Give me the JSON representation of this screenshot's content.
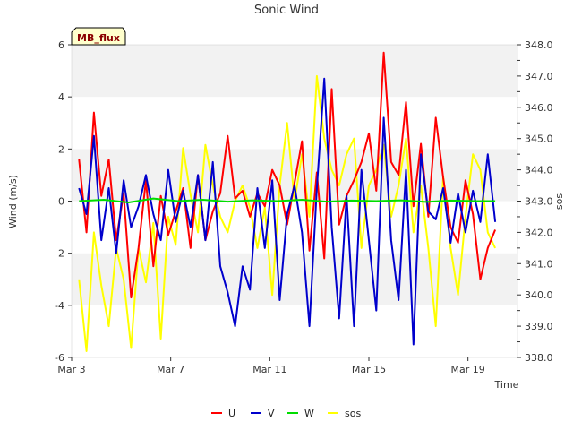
{
  "chart_data": {
    "type": "line",
    "title": "Sonic Wind",
    "badge": "MB_flux",
    "xlabel": "Time",
    "ylabel_left": "Wind (m/s)",
    "ylabel_right": "sos",
    "xlim": [
      3,
      21
    ],
    "ylim_left": [
      -6,
      6
    ],
    "ylim_right": [
      338.0,
      348.0
    ],
    "x_tick_labels": [
      "Mar 3",
      "Mar 7",
      "Mar 11",
      "Mar 15",
      "Mar 19"
    ],
    "x_tick_values": [
      3,
      7,
      11,
      15,
      19
    ],
    "y_left_ticks": [
      -6,
      -4,
      -2,
      0,
      2,
      4,
      6
    ],
    "y_right_ticks": [
      "338.0",
      "339.0",
      "340.0",
      "341.0",
      "342.0",
      "343.0",
      "344.0",
      "345.0",
      "346.0",
      "347.0",
      "348.0"
    ],
    "grid_bands": true,
    "legend_position": "bottom",
    "series": [
      {
        "name": "U",
        "color": "#ff0000",
        "axis": "left",
        "x": [
          3.3,
          3.6,
          3.9,
          4.2,
          4.5,
          4.8,
          5.1,
          5.4,
          5.7,
          6.0,
          6.3,
          6.6,
          6.9,
          7.2,
          7.5,
          7.8,
          8.1,
          8.4,
          8.7,
          9.0,
          9.3,
          9.6,
          9.9,
          10.2,
          10.5,
          10.8,
          11.1,
          11.4,
          11.7,
          12.0,
          12.3,
          12.6,
          12.9,
          13.2,
          13.5,
          13.8,
          14.1,
          14.4,
          14.7,
          15.0,
          15.3,
          15.6,
          15.9,
          16.2,
          16.5,
          16.8,
          17.1,
          17.4,
          17.7,
          18.0,
          18.3,
          18.6,
          18.9,
          19.2,
          19.5,
          19.8,
          20.1
        ],
        "values": [
          1.6,
          -1.2,
          3.4,
          0.2,
          1.6,
          -1.5,
          0.3,
          -3.7,
          -1.8,
          0.8,
          -2.5,
          0.2,
          -1.3,
          -0.4,
          0.5,
          -1.8,
          1.0,
          -1.5,
          -0.4,
          0.3,
          2.5,
          0.1,
          0.4,
          -0.6,
          0.3,
          -0.2,
          1.2,
          0.6,
          -0.9,
          0.7,
          2.3,
          -1.9,
          1.1,
          -2.2,
          4.3,
          -0.9,
          0.2,
          0.8,
          1.5,
          2.6,
          0.4,
          5.7,
          1.5,
          1.0,
          3.8,
          -0.2,
          2.2,
          -0.6,
          3.2,
          0.9,
          -1.0,
          -1.6,
          0.8,
          -0.5,
          -3.0,
          -1.8,
          -1.1
        ]
      },
      {
        "name": "V",
        "color": "#0000cc",
        "axis": "left",
        "x": [
          3.3,
          3.6,
          3.9,
          4.2,
          4.5,
          4.8,
          5.1,
          5.4,
          5.7,
          6.0,
          6.3,
          6.6,
          6.9,
          7.2,
          7.5,
          7.8,
          8.1,
          8.4,
          8.7,
          9.0,
          9.3,
          9.6,
          9.9,
          10.2,
          10.5,
          10.8,
          11.1,
          11.4,
          11.7,
          12.0,
          12.3,
          12.6,
          12.9,
          13.2,
          13.5,
          13.8,
          14.1,
          14.4,
          14.7,
          15.0,
          15.3,
          15.6,
          15.9,
          16.2,
          16.5,
          16.8,
          17.1,
          17.4,
          17.7,
          18.0,
          18.3,
          18.6,
          18.9,
          19.2,
          19.5,
          19.8,
          20.1
        ],
        "values": [
          0.5,
          -0.5,
          2.5,
          -1.5,
          0.5,
          -2.0,
          0.8,
          -1.0,
          -0.2,
          1.0,
          -0.5,
          -1.5,
          1.2,
          -0.8,
          0.4,
          -1.0,
          1.0,
          -1.5,
          1.5,
          -2.5,
          -3.5,
          -4.8,
          -2.5,
          -3.4,
          0.5,
          -1.8,
          0.8,
          -3.8,
          -0.5,
          0.6,
          -1.2,
          -4.8,
          0.5,
          4.7,
          -1.0,
          -4.5,
          0.2,
          -4.8,
          1.2,
          -1.5,
          -4.2,
          3.2,
          -1.5,
          -3.8,
          1.2,
          -5.5,
          1.8,
          -0.4,
          -0.7,
          0.5,
          -1.6,
          0.3,
          -1.2,
          0.4,
          -0.8,
          1.8,
          -0.8
        ]
      },
      {
        "name": "W",
        "color": "#00dd00",
        "axis": "left",
        "x": [
          3.3,
          4.3,
          5.3,
          6.3,
          7.3,
          8.3,
          9.3,
          10.3,
          11.3,
          12.3,
          13.3,
          14.3,
          15.3,
          16.3,
          17.3,
          18.3,
          19.3,
          20.1
        ],
        "values": [
          0.0,
          0.05,
          -0.05,
          0.1,
          0.0,
          0.05,
          -0.02,
          0.03,
          0.0,
          0.05,
          -0.02,
          0.02,
          0.0,
          0.03,
          -0.03,
          0.02,
          0.0,
          0.0
        ]
      },
      {
        "name": "sos",
        "color": "#ffff00",
        "axis": "right",
        "x": [
          3.3,
          3.6,
          3.9,
          4.2,
          4.5,
          4.8,
          5.1,
          5.4,
          5.7,
          6.0,
          6.3,
          6.6,
          6.9,
          7.2,
          7.5,
          7.8,
          8.1,
          8.4,
          8.7,
          9.0,
          9.3,
          9.6,
          9.9,
          10.2,
          10.5,
          10.8,
          11.1,
          11.4,
          11.7,
          12.0,
          12.3,
          12.6,
          12.9,
          13.2,
          13.5,
          13.8,
          14.1,
          14.4,
          14.7,
          15.0,
          15.3,
          15.6,
          15.9,
          16.2,
          16.5,
          16.8,
          17.1,
          17.4,
          17.7,
          18.0,
          18.3,
          18.6,
          18.9,
          19.2,
          19.5,
          19.8,
          20.1
        ],
        "values": [
          340.5,
          338.2,
          342.0,
          340.3,
          339.0,
          341.5,
          340.5,
          338.3,
          341.5,
          340.4,
          342.3,
          338.6,
          342.5,
          341.6,
          344.7,
          343.2,
          342.0,
          344.8,
          343.5,
          342.5,
          342.0,
          343.0,
          343.5,
          342.8,
          341.5,
          342.8,
          340.0,
          343.5,
          345.5,
          343.0,
          344.5,
          342.5,
          347.0,
          345.0,
          344.0,
          343.5,
          344.5,
          345.0,
          341.5,
          343.5,
          344.0,
          344.8,
          342.5,
          343.5,
          345.0,
          342.0,
          343.5,
          341.5,
          339.0,
          343.8,
          341.5,
          340.0,
          342.5,
          344.5,
          344.0,
          342.0,
          341.5
        ]
      }
    ]
  }
}
